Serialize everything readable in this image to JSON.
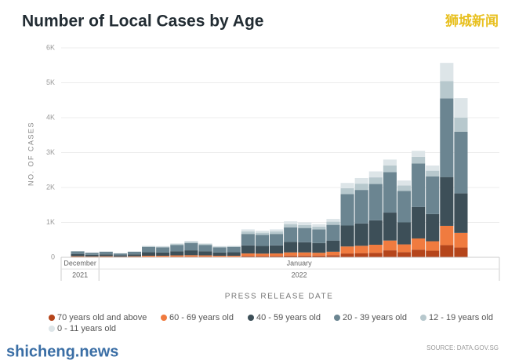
{
  "chart_data": {
    "type": "stacked_bar",
    "title": "Number of Local Cases by Age",
    "watermark_top": "狮城新闻",
    "watermark_bottom": "shicheng.news",
    "y_label": "NO. OF CASES",
    "x_label": "PRESS RELEASE DATE",
    "source": "SOURCE: DATA.GOV.SG",
    "months": [
      "December",
      "January"
    ],
    "years": [
      "2021",
      "2022"
    ],
    "categories": [
      null,
      null,
      null,
      null,
      null,
      null,
      null,
      null,
      null,
      null,
      null,
      null,
      null,
      null,
      null,
      null,
      null,
      null,
      null,
      null,
      null,
      null,
      null,
      null,
      null,
      null,
      null,
      null
    ],
    "ylim": [
      0,
      6000
    ],
    "yticks": [
      0,
      {
        "value": 1000,
        "label": "1K"
      },
      {
        "value": 2000,
        "label": "2K"
      },
      {
        "value": 3000,
        "label": "3K"
      },
      {
        "value": 4000,
        "label": "4K"
      },
      {
        "value": 5000,
        "label": "5K"
      },
      {
        "value": 6000,
        "label": "6K"
      }
    ],
    "grid": true,
    "series": [
      {
        "name": "70 years old and above",
        "color": "#b5451b",
        "values": [
          10,
          10,
          10,
          5,
          10,
          15,
          15,
          20,
          20,
          20,
          15,
          15,
          40,
          40,
          40,
          50,
          50,
          50,
          60,
          110,
          120,
          130,
          200,
          150,
          220,
          190,
          350,
          280
        ]
      },
      {
        "name": "60 - 69 years old",
        "color": "#f07b3f",
        "values": [
          20,
          15,
          20,
          15,
          20,
          30,
          30,
          35,
          40,
          35,
          30,
          30,
          70,
          65,
          70,
          90,
          90,
          80,
          100,
          200,
          210,
          230,
          280,
          220,
          320,
          270,
          550,
          420
        ]
      },
      {
        "name": "40 - 59 years old",
        "color": "#3d4f58",
        "values": [
          60,
          45,
          55,
          40,
          55,
          100,
          95,
          120,
          140,
          120,
          95,
          100,
          230,
          220,
          230,
          300,
          290,
          280,
          320,
          600,
          640,
          700,
          800,
          630,
          900,
          780,
          1400,
          1130
        ]
      },
      {
        "name": "20 - 39 years old",
        "color": "#6b8591",
        "values": [
          80,
          60,
          75,
          50,
          75,
          150,
          145,
          180,
          210,
          180,
          145,
          150,
          330,
          315,
          330,
          420,
          410,
          390,
          450,
          900,
          960,
          1040,
          1160,
          900,
          1250,
          1080,
          2250,
          1770
        ]
      },
      {
        "name": "12 - 19 years old",
        "color": "#b7c8cd",
        "values": [
          5,
          5,
          5,
          5,
          5,
          20,
          20,
          25,
          35,
          25,
          20,
          20,
          70,
          65,
          70,
          90,
          85,
          80,
          90,
          170,
          180,
          190,
          190,
          160,
          190,
          160,
          500,
          400
        ]
      },
      {
        "name": "0 - 11 years old",
        "color": "#dde5e8",
        "values": [
          5,
          5,
          5,
          5,
          5,
          15,
          15,
          20,
          25,
          20,
          15,
          15,
          60,
          55,
          60,
          80,
          75,
          70,
          80,
          150,
          160,
          170,
          170,
          140,
          170,
          150,
          520,
          560
        ]
      }
    ]
  }
}
